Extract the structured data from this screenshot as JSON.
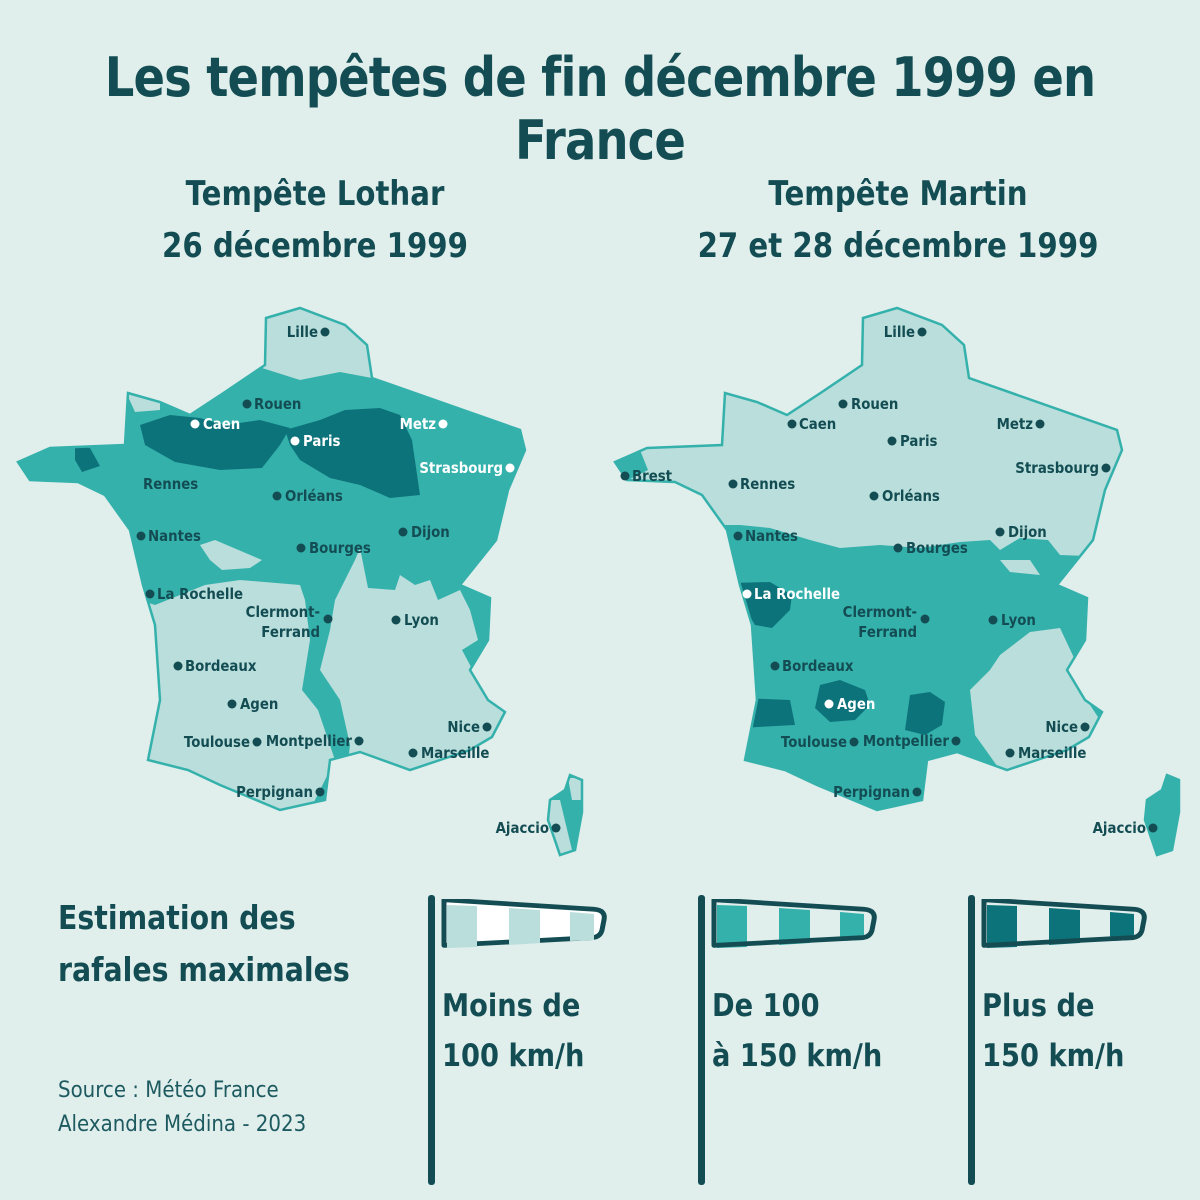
{
  "title": "Les tempêtes de fin décembre 1999 en France",
  "maps": [
    {
      "name": "Tempête Lothar",
      "date": "26 décembre 1999"
    },
    {
      "name": "Tempête Martin",
      "date": "27 et 28 décembre 1999"
    }
  ],
  "cities": [
    "Lille",
    "Rouen",
    "Caen",
    "Metz",
    "Paris",
    "Strasbourg",
    "Brest",
    "Rennes",
    "Orléans",
    "Nantes",
    "Dijon",
    "Bourges",
    "La Rochelle",
    "Clermont-",
    "Ferrand",
    "Lyon",
    "Bordeaux",
    "Agen",
    "Nice",
    "Toulouse",
    "Montpellier",
    "Marseille",
    "Perpignan",
    "Ajaccio"
  ],
  "legend": {
    "title_line1": "Estimation des",
    "title_line2": "rafales maximales",
    "items": [
      {
        "line1": "Moins de",
        "line2": "100 km/h",
        "color": "#b9dedb"
      },
      {
        "line1": "De 100",
        "line2": "à 150 km/h",
        "color": "#35b1ac"
      },
      {
        "line1": "Plus de",
        "line2": "150 km/h",
        "color": "#0d737a"
      }
    ]
  },
  "source_line1": "Source : Météo France",
  "source_line2": "Alexandre Médina - 2023",
  "colors": {
    "background": "#e0eeec",
    "text": "#134d53",
    "low": "#b9dedb",
    "mid": "#35b1ac",
    "high": "#0d737a"
  }
}
